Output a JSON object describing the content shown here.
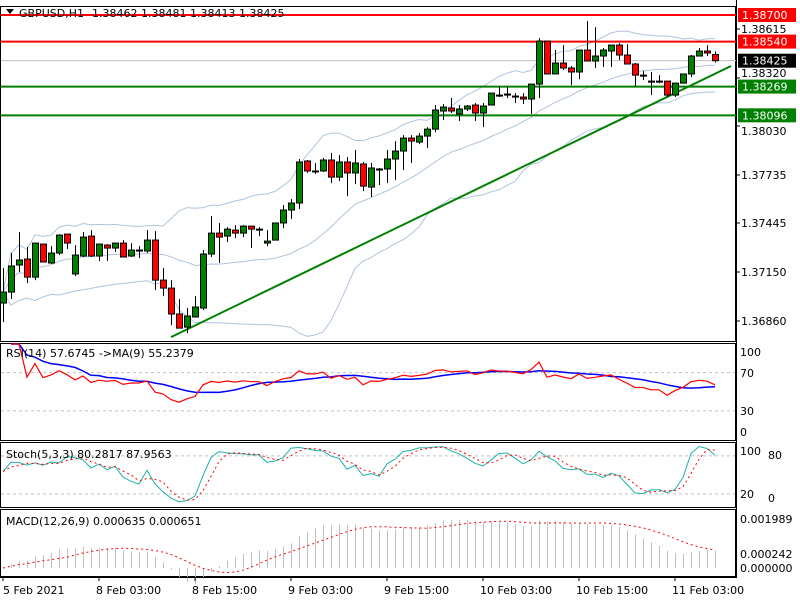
{
  "header": {
    "symbol_label": "GBPUSD,H1",
    "ohlc_label": "1.38462 1.38481 1.38413 1.38425",
    "menu_icon": "triangle-down-icon"
  },
  "chart_data": {
    "type": "candlestick",
    "symbol": "GBPUSD",
    "timeframe": "H1",
    "colors": {
      "bull": "#008000",
      "bear": "#ff0000",
      "wick": "#000000",
      "bands": "#b0c4de",
      "trendline": "#008000",
      "current_price_line": "#c0c0c0"
    },
    "candles": [
      [
        1.36966,
        1.37177,
        1.36852,
        1.37032
      ],
      [
        1.37032,
        1.37267,
        1.3699,
        1.37189
      ],
      [
        1.37195,
        1.37393,
        1.37153,
        1.37225
      ],
      [
        1.37231,
        1.37303,
        1.37086,
        1.37122
      ],
      [
        1.37122,
        1.37327,
        1.37104,
        1.37327
      ],
      [
        1.37321,
        1.37321,
        1.37213,
        1.37213
      ],
      [
        1.37207,
        1.37309,
        1.37201,
        1.37267
      ],
      [
        1.37267,
        1.37381,
        1.37255,
        1.37375
      ],
      [
        1.37381,
        1.37381,
        1.37291,
        1.37327
      ],
      [
        1.37141,
        1.37315,
        1.37128,
        1.37255
      ],
      [
        1.37249,
        1.37393,
        1.37243,
        1.37363
      ],
      [
        1.37369,
        1.37405,
        1.37243,
        1.37249
      ],
      [
        1.37249,
        1.37321,
        1.37219,
        1.37321
      ],
      [
        1.37315,
        1.37321,
        1.37219,
        1.37297
      ],
      [
        1.37297,
        1.37327,
        1.37273,
        1.37327
      ],
      [
        1.37327,
        1.37345,
        1.37243,
        1.37243
      ],
      [
        1.37249,
        1.37327,
        1.37243,
        1.37285
      ],
      [
        1.37285,
        1.37309,
        1.37237,
        1.37285
      ],
      [
        1.37279,
        1.37405,
        1.37267,
        1.37345
      ],
      [
        1.37345,
        1.37399,
        1.37044,
        1.37104
      ],
      [
        1.37104,
        1.37177,
        1.37008,
        1.37056
      ],
      [
        1.37056,
        1.37104,
        1.36833,
        1.369
      ],
      [
        1.369,
        1.3699,
        1.36815,
        1.36815
      ],
      [
        1.36821,
        1.36936,
        1.36785,
        1.36888
      ],
      [
        1.36882,
        1.37008,
        1.36882,
        1.36942
      ],
      [
        1.36936,
        1.37285,
        1.36924,
        1.37261
      ],
      [
        1.37261,
        1.3749,
        1.37243,
        1.37387
      ],
      [
        1.37387,
        1.37448,
        1.37207,
        1.37363
      ],
      [
        1.37369,
        1.37423,
        1.37333,
        1.37411
      ],
      [
        1.37405,
        1.37435,
        1.37357,
        1.37387
      ],
      [
        1.37387,
        1.37435,
        1.37363,
        1.37429
      ],
      [
        1.37429,
        1.37429,
        1.37297,
        1.37411
      ],
      [
        1.37411,
        1.37423,
        1.37369,
        1.37411
      ],
      [
        1.37327,
        1.37405,
        1.37309,
        1.37339
      ],
      [
        1.37345,
        1.37448,
        1.37345,
        1.37448
      ],
      [
        1.37448,
        1.37556,
        1.37417,
        1.37526
      ],
      [
        1.37526,
        1.37592,
        1.37472,
        1.37568
      ],
      [
        1.37568,
        1.37833,
        1.37532,
        1.37815
      ],
      [
        1.37821,
        1.37827,
        1.37749,
        1.37761
      ],
      [
        1.37761,
        1.37809,
        1.37743,
        1.37761
      ],
      [
        1.37761,
        1.37839,
        1.37755,
        1.37827
      ],
      [
        1.37827,
        1.37869,
        1.37688,
        1.37724
      ],
      [
        1.37724,
        1.37857,
        1.377,
        1.37815
      ],
      [
        1.37815,
        1.37845,
        1.3761,
        1.37749
      ],
      [
        1.37749,
        1.37887,
        1.37682,
        1.37809
      ],
      [
        1.37803,
        1.37815,
        1.3764,
        1.3767
      ],
      [
        1.37664,
        1.37809,
        1.37604,
        1.37779
      ],
      [
        1.37773,
        1.37779,
        1.37676,
        1.37773
      ],
      [
        1.37773,
        1.37887,
        1.37688,
        1.37833
      ],
      [
        1.37833,
        1.37941,
        1.37706,
        1.37881
      ],
      [
        1.37881,
        1.37977,
        1.37767,
        1.37959
      ],
      [
        1.37959,
        1.37977,
        1.37809,
        1.37941
      ],
      [
        1.37935,
        1.37989,
        1.37923,
        1.37971
      ],
      [
        1.37971,
        1.38025,
        1.37899,
        1.38013
      ],
      [
        1.38013,
        1.38158,
        1.37995,
        1.38128
      ],
      [
        1.38122,
        1.38164,
        1.38068,
        1.38146
      ],
      [
        1.3814,
        1.382,
        1.3811,
        1.38122
      ],
      [
        1.38104,
        1.38158,
        1.38062,
        1.38134
      ],
      [
        1.38134,
        1.38158,
        1.38122,
        1.38152
      ],
      [
        1.38158,
        1.3817,
        1.38062,
        1.3811
      ],
      [
        1.3811,
        1.3817,
        1.38025,
        1.38152
      ],
      [
        1.38158,
        1.3823,
        1.38158,
        1.3823
      ],
      [
        1.38218,
        1.38272,
        1.38206,
        1.38218
      ],
      [
        1.38224,
        1.38266,
        1.382,
        1.38218
      ],
      [
        1.38212,
        1.3823,
        1.3817,
        1.38206
      ],
      [
        1.38206,
        1.3823,
        1.38164,
        1.38194
      ],
      [
        1.38194,
        1.38284,
        1.38104,
        1.38284
      ],
      [
        1.38284,
        1.38561,
        1.382,
        1.38543
      ],
      [
        1.38543,
        1.38543,
        1.38345,
        1.38345
      ],
      [
        1.38345,
        1.38489,
        1.38345,
        1.38411
      ],
      [
        1.38411,
        1.38519,
        1.38369,
        1.38381
      ],
      [
        1.38381,
        1.38393,
        1.38278,
        1.38357
      ],
      [
        1.38357,
        1.38489,
        1.38314,
        1.38489
      ],
      [
        1.38489,
        1.38664,
        1.38423,
        1.38423
      ],
      [
        1.38423,
        1.38627,
        1.38381,
        1.38453
      ],
      [
        1.38453,
        1.38501,
        1.38387,
        1.38489
      ],
      [
        1.38483,
        1.38519,
        1.38387,
        1.38519
      ],
      [
        1.38519,
        1.38531,
        1.38429,
        1.38459
      ],
      [
        1.38459,
        1.38525,
        1.38405,
        1.38405
      ],
      [
        1.38405,
        1.38411,
        1.38272,
        1.38338
      ],
      [
        1.38338,
        1.38363,
        1.38308,
        1.38338
      ],
      [
        1.38302,
        1.38357,
        1.38218,
        1.38302
      ],
      [
        1.38302,
        1.38338,
        1.3829,
        1.38302
      ],
      [
        1.38302,
        1.38302,
        1.38206,
        1.38218
      ],
      [
        1.38218,
        1.3829,
        1.38206,
        1.3829
      ],
      [
        1.3829,
        1.38345,
        1.3829,
        1.38345
      ],
      [
        1.38345,
        1.38459,
        1.38326,
        1.38453
      ],
      [
        1.38453,
        1.38501,
        1.38453,
        1.38483
      ],
      [
        1.38483,
        1.38519,
        1.38453,
        1.38471
      ],
      [
        1.38462,
        1.38481,
        1.38413,
        1.38425
      ]
    ],
    "price_axis": {
      "ticks": [
        "1.38615",
        "1.38320",
        "1.38030",
        "1.37735",
        "1.37445",
        "1.37150",
        "1.36860"
      ]
    },
    "horizontal_lines": [
      {
        "price": 1.387,
        "label": "1.38700",
        "color": "#ff0000"
      },
      {
        "price": 1.3854,
        "label": "1.38540",
        "color": "#ff0000"
      },
      {
        "price": 1.38269,
        "label": "1.38269",
        "color": "#008000"
      },
      {
        "price": 1.38096,
        "label": "1.38096",
        "color": "#008000"
      }
    ],
    "current_price": {
      "price": 1.38425,
      "label": "1.38425",
      "color": "#000000"
    },
    "trendline": {
      "start_bar": 21,
      "start_price": 1.36761,
      "end_bar": 91,
      "end_price": 1.38393
    },
    "time_axis": {
      "labels": [
        "5 Feb 2021",
        "8 Feb 03:00",
        "8 Feb 15:00",
        "9 Feb 03:00",
        "9 Feb 15:00",
        "10 Feb 03:00",
        "10 Feb 15:00",
        "11 Feb 03:00"
      ]
    },
    "indicators": {
      "rsi": {
        "label": "RSI(14) 57.6745  ->MA(9) 55.2379",
        "axis_ticks": [
          "100",
          "70",
          "30",
          "0"
        ],
        "levels": [
          70,
          30
        ],
        "rsi_color": "#ff0000",
        "ma_color": "#0000ff"
      },
      "stochastic": {
        "label": "Stoch(5,3,3) 80.2817 87.9563",
        "axis_ticks": [
          "100",
          "80",
          "20",
          "0"
        ],
        "levels": [
          80,
          20
        ],
        "main_color": "#20b2aa",
        "signal_color": "#ff0000"
      },
      "macd": {
        "label": "MACD(12,26,9) 0.000635 0.000651",
        "axis_ticks": [
          "0.001989",
          "0.000242",
          "0.000000"
        ],
        "histogram_color": "#c0c0c0",
        "signal_color": "#ff0000"
      }
    }
  }
}
